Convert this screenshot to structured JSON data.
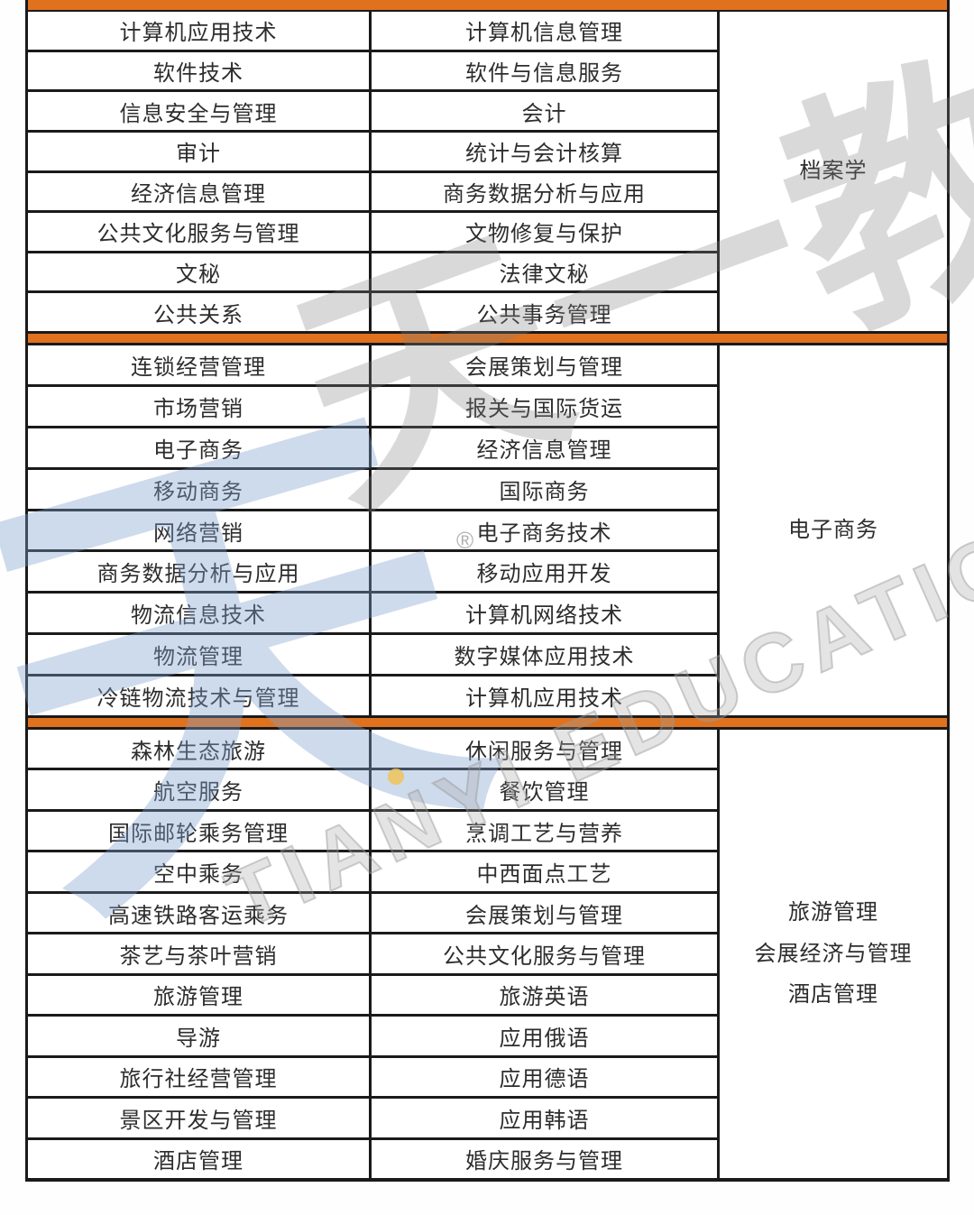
{
  "colors": {
    "accent_orange": "#e0721e",
    "table_border": "#1a1a1a",
    "watermark_gray": "#bfbfbf",
    "watermark_logo_blue": "#9db9dd",
    "watermark_dot_yellow": "#eec35a"
  },
  "table": {
    "sections": [
      {
        "category_lines": [
          "档案学"
        ],
        "rows": [
          [
            "计算机应用技术",
            "计算机信息管理"
          ],
          [
            "软件技术",
            "软件与信息服务"
          ],
          [
            "信息安全与管理",
            "会计"
          ],
          [
            "审计",
            "统计与会计核算"
          ],
          [
            "经济信息管理",
            "商务数据分析与应用"
          ],
          [
            "公共文化服务与管理",
            "文物修复与保护"
          ],
          [
            "文秘",
            "法律文秘"
          ],
          [
            "公共关系",
            "公共事务管理"
          ]
        ]
      },
      {
        "category_lines": [
          "电子商务"
        ],
        "rows": [
          [
            "连锁经营管理",
            "会展策划与管理"
          ],
          [
            "市场营销",
            "报关与国际货运"
          ],
          [
            "电子商务",
            "经济信息管理"
          ],
          [
            "移动商务",
            "国际商务"
          ],
          [
            "网络营销",
            "电子商务技术"
          ],
          [
            "商务数据分析与应用",
            "移动应用开发"
          ],
          [
            "物流信息技术",
            "计算机网络技术"
          ],
          [
            "物流管理",
            "数字媒体应用技术"
          ],
          [
            "冷链物流技术与管理",
            "计算机应用技术"
          ]
        ]
      },
      {
        "category_lines": [
          "旅游管理",
          "会展经济与管理",
          "酒店管理"
        ],
        "rows": [
          [
            "森林生态旅游",
            "休闲服务与管理"
          ],
          [
            "航空服务",
            "餐饮管理"
          ],
          [
            "国际邮轮乘务管理",
            "烹调工艺与营养"
          ],
          [
            "空中乘务",
            "中西面点工艺"
          ],
          [
            "高速铁路客运乘务",
            "会展策划与管理"
          ],
          [
            "茶艺与茶叶营销",
            "公共文化服务与管理"
          ],
          [
            "旅游管理",
            "旅游英语"
          ],
          [
            "导游",
            "应用俄语"
          ],
          [
            "旅行社经营管理",
            "应用德语"
          ],
          [
            "景区开发与管理",
            "应用韩语"
          ],
          [
            "酒店管理",
            "婚庆服务与管理"
          ]
        ]
      }
    ]
  },
  "watermark": {
    "logo_cjk": "天",
    "cjk_text": "天一教育",
    "latin_text": "TIANYI EDUCATION",
    "registered_mark": "®"
  }
}
